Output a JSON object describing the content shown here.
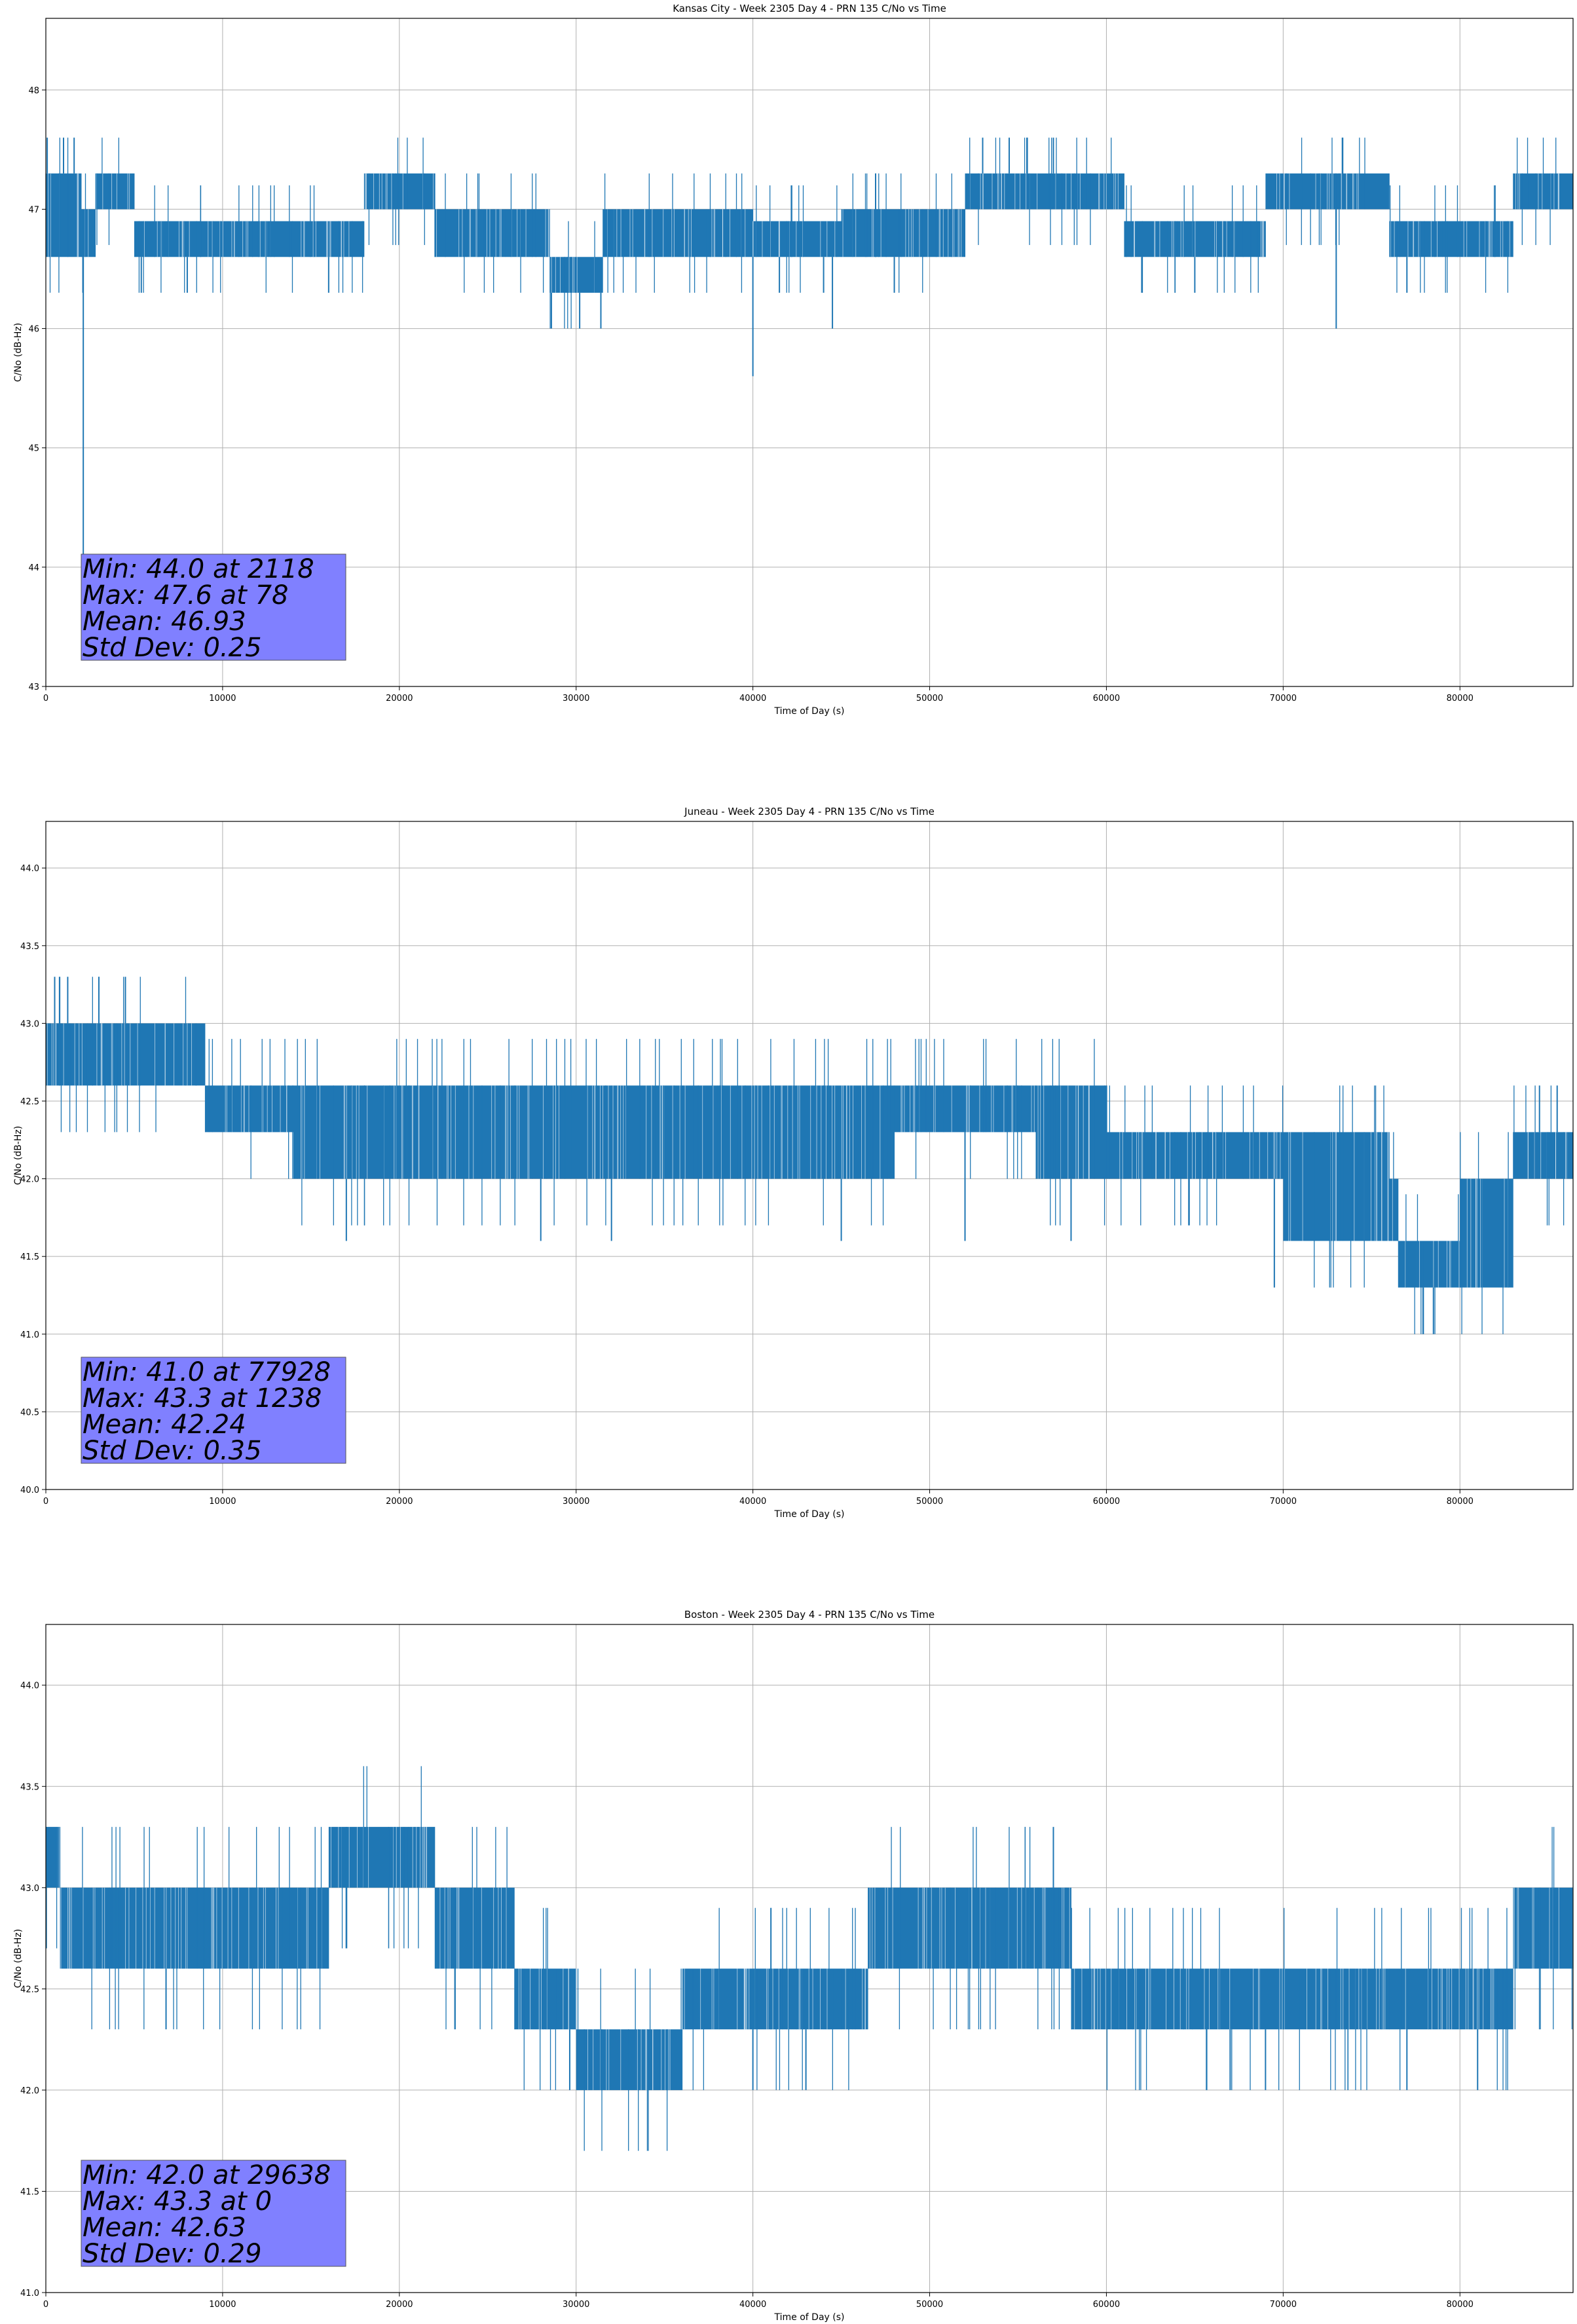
{
  "colors": {
    "series": "#1f77b4",
    "grid": "#b0b0b0",
    "statbox": "#8080ff",
    "statbox_edge": "#555555"
  },
  "chart_data": [
    {
      "type": "line",
      "title": "Kansas City - Week 2305 Day 4 - PRN 135 C/No vs Time",
      "xlabel": "Time of Day (s)",
      "ylabel": "C/No (dB-Hz)",
      "xlim": [
        0,
        86400
      ],
      "ylim": [
        43,
        48.6
      ],
      "xticks": [
        0,
        10000,
        20000,
        30000,
        40000,
        50000,
        60000,
        70000,
        80000
      ],
      "yticks": [
        43,
        44,
        45,
        46,
        47,
        48
      ],
      "yticklabels": [
        "43",
        "44",
        "45",
        "46",
        "47",
        "48"
      ],
      "grid": true,
      "series": [
        {
          "name": "C/No",
          "segments": [
            [
              0,
              47.3,
              46.6
            ],
            [
              2000,
              47.0,
              46.6
            ],
            [
              2800,
              47.3,
              47.0
            ],
            [
              5000,
              46.9,
              46.6
            ],
            [
              12000,
              46.9,
              46.6
            ],
            [
              16000,
              46.9,
              46.6
            ],
            [
              18000,
              47.3,
              47.0
            ],
            [
              22000,
              47.0,
              46.6
            ],
            [
              26000,
              47.0,
              46.6
            ],
            [
              28500,
              46.6,
              46.3
            ],
            [
              31500,
              47.0,
              46.6
            ],
            [
              35000,
              47.0,
              46.6
            ],
            [
              40000,
              46.9,
              46.6
            ],
            [
              45000,
              47.0,
              46.6
            ],
            [
              52000,
              47.3,
              47.0
            ],
            [
              57000,
              47.3,
              47.0
            ],
            [
              61000,
              46.9,
              46.6
            ],
            [
              64000,
              46.9,
              46.6
            ],
            [
              69000,
              47.3,
              47.0
            ],
            [
              73000,
              47.3,
              47.0
            ],
            [
              76000,
              46.9,
              46.6
            ],
            [
              79000,
              46.9,
              46.6
            ],
            [
              83000,
              47.3,
              47.0
            ],
            [
              86400,
              47.3,
              47.0
            ]
          ],
          "spikes": [
            [
              78,
              47.6
            ],
            [
              1000,
              47.6
            ],
            [
              1600,
              47.6
            ],
            [
              2118,
              44.0
            ],
            [
              5400,
              46.3
            ],
            [
              8000,
              46.3
            ],
            [
              16000,
              46.3
            ],
            [
              28600,
              46.0
            ],
            [
              30200,
              46.0
            ],
            [
              31400,
              46.0
            ],
            [
              40000,
              45.6
            ],
            [
              41500,
              46.3
            ],
            [
              44000,
              46.3
            ],
            [
              44500,
              46.0
            ],
            [
              48000,
              46.3
            ],
            [
              53000,
              47.6
            ],
            [
              54500,
              47.6
            ],
            [
              55500,
              47.6
            ],
            [
              57000,
              47.6
            ],
            [
              62000,
              46.3
            ],
            [
              65000,
              46.3
            ],
            [
              73000,
              46.0
            ],
            [
              77000,
              46.3
            ]
          ]
        }
      ],
      "stats": [
        "Min: 44.0 at 2118",
        "Max: 47.6 at 78",
        "Mean: 46.93",
        "Std Dev: 0.25"
      ]
    },
    {
      "type": "line",
      "title": "Juneau - Week 2305 Day 4 - PRN 135 C/No vs Time",
      "xlabel": "Time of Day (s)",
      "ylabel": "C/No (dB-Hz)",
      "xlim": [
        0,
        86400
      ],
      "ylim": [
        40.0,
        44.3
      ],
      "xticks": [
        0,
        10000,
        20000,
        30000,
        40000,
        50000,
        60000,
        70000,
        80000
      ],
      "yticks": [
        40.0,
        40.5,
        41.0,
        41.5,
        42.0,
        42.5,
        43.0,
        43.5,
        44.0
      ],
      "yticklabels": [
        "40.0",
        "40.5",
        "41.0",
        "41.5",
        "42.0",
        "42.5",
        "43.0",
        "43.5",
        "44.0"
      ],
      "grid": true,
      "series": [
        {
          "name": "C/No",
          "segments": [
            [
              0,
              43.0,
              42.6
            ],
            [
              9000,
              42.6,
              42.3
            ],
            [
              14000,
              42.6,
              42.0
            ],
            [
              20000,
              42.6,
              42.0
            ],
            [
              26000,
              42.6,
              42.0
            ],
            [
              32000,
              42.6,
              42.0
            ],
            [
              38000,
              42.6,
              42.0
            ],
            [
              44000,
              42.6,
              42.0
            ],
            [
              48000,
              42.6,
              42.3
            ],
            [
              56000,
              42.6,
              42.0
            ],
            [
              60000,
              42.3,
              42.0
            ],
            [
              64000,
              42.3,
              42.0
            ],
            [
              70000,
              42.3,
              41.6
            ],
            [
              76000,
              42.0,
              41.6
            ],
            [
              76500,
              41.6,
              41.3
            ],
            [
              80000,
              42.0,
              41.3
            ],
            [
              83000,
              42.3,
              42.0
            ],
            [
              86400,
              42.3,
              42.0
            ]
          ],
          "spikes": [
            [
              500,
              43.3
            ],
            [
              1238,
              43.3
            ],
            [
              3000,
              43.3
            ],
            [
              4500,
              43.3
            ],
            [
              8500,
              43.0
            ],
            [
              17000,
              41.6
            ],
            [
              28000,
              41.6
            ],
            [
              32000,
              41.6
            ],
            [
              45000,
              41.6
            ],
            [
              52000,
              41.6
            ],
            [
              58000,
              41.6
            ],
            [
              69500,
              41.3
            ],
            [
              77928,
              41.0
            ],
            [
              78500,
              41.0
            ],
            [
              84500,
              42.6
            ],
            [
              85500,
              42.6
            ]
          ]
        }
      ],
      "stats": [
        "Min: 41.0 at 77928",
        "Max: 43.3 at 1238",
        "Mean: 42.24",
        "Std Dev: 0.35"
      ]
    },
    {
      "type": "line",
      "title": "Boston - Week 2305 Day 4 - PRN 135 C/No vs Time",
      "xlabel": "Time of Day (s)",
      "ylabel": "C/No (dB-Hz)",
      "xlim": [
        0,
        86400
      ],
      "ylim": [
        41.0,
        44.3
      ],
      "xticks": [
        0,
        10000,
        20000,
        30000,
        40000,
        50000,
        60000,
        70000,
        80000
      ],
      "yticks": [
        41.0,
        41.5,
        42.0,
        42.5,
        43.0,
        43.5,
        44.0
      ],
      "yticklabels": [
        "41.0",
        "41.5",
        "42.0",
        "42.5",
        "43.0",
        "43.5",
        "44.0"
      ],
      "grid": true,
      "series": [
        {
          "name": "C/No",
          "segments": [
            [
              0,
              43.3,
              43.0
            ],
            [
              800,
              43.0,
              42.6
            ],
            [
              9000,
              43.0,
              42.6
            ],
            [
              16000,
              43.3,
              43.0
            ],
            [
              22000,
              43.0,
              42.6
            ],
            [
              26500,
              42.6,
              42.3
            ],
            [
              30000,
              42.3,
              42.0
            ],
            [
              36000,
              42.6,
              42.3
            ],
            [
              45000,
              42.6,
              42.3
            ],
            [
              46500,
              43.0,
              42.6
            ],
            [
              54000,
              43.0,
              42.6
            ],
            [
              58000,
              42.6,
              42.3
            ],
            [
              68000,
              42.6,
              42.3
            ],
            [
              76000,
              42.6,
              42.3
            ],
            [
              83000,
              43.0,
              42.6
            ],
            [
              86400,
              43.3,
              43.0
            ]
          ],
          "spikes": [
            [
              0,
              43.3
            ],
            [
              6800,
              42.3
            ],
            [
              29638,
              42.0
            ],
            [
              40000,
              42.0
            ],
            [
              43000,
              42.0
            ],
            [
              57000,
              43.3
            ],
            [
              67000,
              42.0
            ],
            [
              69000,
              42.0
            ],
            [
              77000,
              42.0
            ],
            [
              81000,
              42.0
            ]
          ]
        }
      ],
      "stats": [
        "Min: 42.0 at 29638",
        "Max: 43.3 at 0",
        "Mean: 42.63",
        "Std Dev: 0.29"
      ]
    }
  ]
}
